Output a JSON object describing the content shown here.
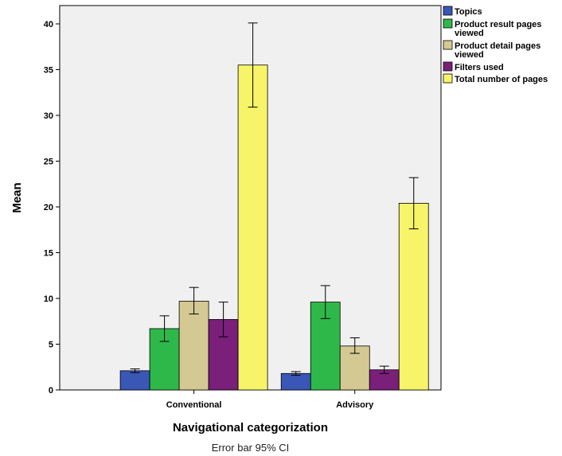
{
  "chart_data": {
    "type": "bar",
    "categories": [
      "Conventional",
      "Advisory"
    ],
    "series": [
      {
        "name": "Topics",
        "color": "#3a57b6",
        "values": [
          2.1,
          1.8
        ],
        "ci_low": [
          1.9,
          1.6
        ],
        "ci_high": [
          2.3,
          2.0
        ]
      },
      {
        "name": "Product result pages viewed",
        "color": "#2fb84a",
        "values": [
          6.7,
          9.6
        ],
        "ci_low": [
          5.3,
          7.8
        ],
        "ci_high": [
          8.1,
          11.4
        ]
      },
      {
        "name": "Product detail pages viewed",
        "color": "#d4c992",
        "values": [
          9.7,
          4.8
        ],
        "ci_low": [
          8.3,
          4.0
        ],
        "ci_high": [
          11.2,
          5.7
        ]
      },
      {
        "name": "Filters used",
        "color": "#7a1f7a",
        "values": [
          7.7,
          2.2
        ],
        "ci_low": [
          5.8,
          1.8
        ],
        "ci_high": [
          9.6,
          2.6
        ]
      },
      {
        "name": "Total number of pages",
        "color": "#f8f46a",
        "values": [
          35.5,
          20.4
        ],
        "ci_low": [
          30.9,
          17.6
        ],
        "ci_high": [
          40.1,
          23.2
        ]
      }
    ],
    "title": "",
    "xlabel": "Navigational categorization",
    "ylabel": "Mean",
    "ylim": [
      0,
      42
    ],
    "yticks": [
      0,
      5,
      10,
      15,
      20,
      25,
      30,
      35,
      40
    ],
    "note": "Error bar 95% CI",
    "grid": false,
    "legend_position": "top-right",
    "plot_background": "#f0f0f0"
  }
}
